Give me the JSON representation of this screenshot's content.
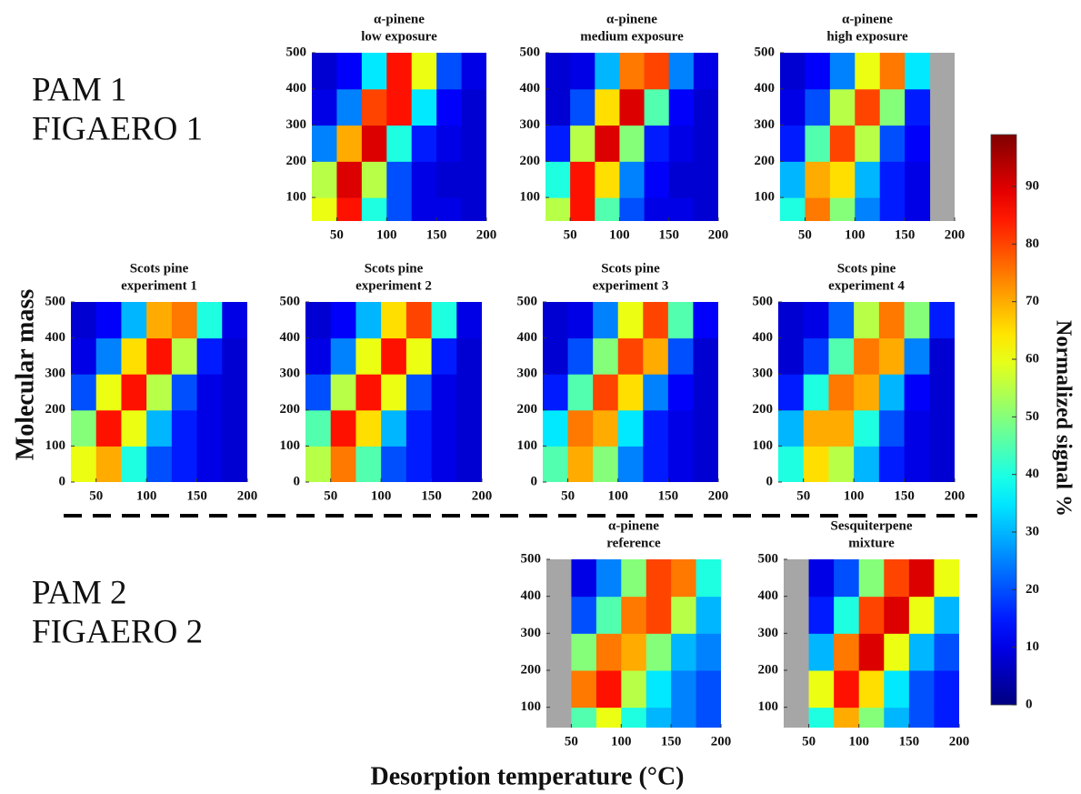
{
  "figure": {
    "group_labels": [
      [
        "PAM 1",
        "FIGAERO 1"
      ],
      [
        "PAM 2",
        "FIGAERO 2"
      ]
    ],
    "ylabel": "Molecular mass",
    "xlabel": "Desorption temperature (°C)",
    "colormap": "jet",
    "colorbar": {
      "label": "Normalized signal %",
      "clim": [
        0,
        99
      ],
      "ticks": [
        0,
        10,
        20,
        30,
        40,
        50,
        60,
        70,
        80,
        90
      ]
    }
  },
  "chart_data": [
    {
      "type": "heatmap",
      "title": [
        "α-pinene",
        "low exposure"
      ],
      "x_bins": [
        25,
        50,
        75,
        100,
        125,
        150,
        175,
        200
      ],
      "y_bins": [
        0,
        100,
        200,
        300,
        400,
        500
      ],
      "z": [
        [
          60,
          85,
          40,
          20,
          10,
          10,
          8
        ],
        [
          55,
          90,
          55,
          20,
          10,
          8,
          8
        ],
        [
          25,
          70,
          90,
          40,
          15,
          10,
          8
        ],
        [
          10,
          25,
          80,
          85,
          35,
          12,
          8
        ],
        [
          8,
          12,
          35,
          85,
          60,
          20,
          10
        ]
      ],
      "xlim": [
        25,
        200
      ],
      "ylim": [
        35,
        500
      ],
      "xticks": [
        50,
        100,
        150,
        200
      ],
      "yticks": [
        100,
        200,
        300,
        400,
        500
      ]
    },
    {
      "type": "heatmap",
      "title": [
        "α-pinene",
        "medium exposure"
      ],
      "x_bins": [
        25,
        50,
        75,
        100,
        125,
        150,
        175,
        200
      ],
      "y_bins": [
        0,
        100,
        200,
        300,
        400,
        500
      ],
      "z": [
        [
          55,
          85,
          45,
          20,
          10,
          10,
          8
        ],
        [
          40,
          85,
          65,
          25,
          12,
          8,
          8
        ],
        [
          15,
          55,
          90,
          50,
          15,
          10,
          8
        ],
        [
          8,
          20,
          65,
          90,
          45,
          12,
          8
        ],
        [
          8,
          10,
          30,
          75,
          80,
          25,
          10
        ]
      ],
      "xlim": [
        25,
        200
      ],
      "ylim": [
        35,
        500
      ],
      "xticks": [
        50,
        100,
        150,
        200
      ],
      "yticks": [
        100,
        200,
        300,
        400,
        500
      ]
    },
    {
      "type": "heatmap",
      "title": [
        "α-pinene",
        "high exposure"
      ],
      "x_bins": [
        25,
        50,
        75,
        100,
        125,
        150,
        175,
        200
      ],
      "y_bins": [
        0,
        100,
        200,
        300,
        400,
        500
      ],
      "z": [
        [
          40,
          75,
          50,
          25,
          15,
          10,
          null
        ],
        [
          30,
          70,
          65,
          30,
          15,
          10,
          null
        ],
        [
          15,
          45,
          80,
          55,
          20,
          12,
          null
        ],
        [
          10,
          20,
          55,
          80,
          50,
          15,
          null
        ],
        [
          8,
          12,
          25,
          60,
          75,
          35,
          null
        ]
      ],
      "xlim": [
        25,
        200
      ],
      "ylim": [
        35,
        500
      ],
      "xticks": [
        50,
        100,
        150,
        200
      ],
      "yticks": [
        100,
        200,
        300,
        400,
        500
      ]
    },
    {
      "type": "heatmap",
      "title": [
        "Scots pine",
        "experiment 1"
      ],
      "x_bins": [
        25,
        50,
        75,
        100,
        125,
        150,
        175,
        200
      ],
      "y_bins": [
        0,
        100,
        200,
        300,
        400,
        500
      ],
      "z": [
        [
          60,
          70,
          40,
          20,
          15,
          10,
          8
        ],
        [
          50,
          85,
          60,
          30,
          15,
          10,
          8
        ],
        [
          20,
          60,
          85,
          55,
          20,
          10,
          8
        ],
        [
          10,
          25,
          65,
          85,
          55,
          15,
          8
        ],
        [
          8,
          12,
          30,
          70,
          75,
          40,
          10
        ]
      ],
      "xlim": [
        25,
        200
      ],
      "ylim": [
        0,
        500
      ],
      "xticks": [
        50,
        100,
        150,
        200
      ],
      "yticks": [
        0,
        100,
        200,
        300,
        400,
        500
      ]
    },
    {
      "type": "heatmap",
      "title": [
        "Scots pine",
        "experiment 2"
      ],
      "x_bins": [
        25,
        50,
        75,
        100,
        125,
        150,
        175,
        200
      ],
      "y_bins": [
        0,
        100,
        200,
        300,
        400,
        500
      ],
      "z": [
        [
          55,
          75,
          45,
          20,
          15,
          10,
          8
        ],
        [
          45,
          85,
          65,
          30,
          15,
          10,
          8
        ],
        [
          20,
          55,
          85,
          60,
          20,
          10,
          8
        ],
        [
          10,
          25,
          60,
          85,
          60,
          15,
          8
        ],
        [
          8,
          12,
          30,
          65,
          80,
          40,
          10
        ]
      ],
      "xlim": [
        25,
        200
      ],
      "ylim": [
        0,
        500
      ],
      "xticks": [
        50,
        100,
        150,
        200
      ],
      "yticks": [
        0,
        100,
        200,
        300,
        400,
        500
      ]
    },
    {
      "type": "heatmap",
      "title": [
        "Scots pine",
        "experiment 3"
      ],
      "x_bins": [
        25,
        50,
        75,
        100,
        125,
        150,
        175,
        200
      ],
      "y_bins": [
        0,
        100,
        200,
        300,
        400,
        500
      ],
      "z": [
        [
          45,
          70,
          50,
          25,
          15,
          10,
          8
        ],
        [
          35,
          75,
          70,
          35,
          15,
          10,
          8
        ],
        [
          15,
          45,
          80,
          65,
          25,
          12,
          8
        ],
        [
          8,
          20,
          50,
          80,
          70,
          20,
          8
        ],
        [
          8,
          10,
          25,
          60,
          80,
          45,
          12
        ]
      ],
      "xlim": [
        25,
        200
      ],
      "ylim": [
        0,
        500
      ],
      "xticks": [
        50,
        100,
        150,
        200
      ],
      "yticks": [
        0,
        100,
        200,
        300,
        400,
        500
      ]
    },
    {
      "type": "heatmap",
      "title": [
        "Scots pine",
        "experiment 4"
      ],
      "x_bins": [
        25,
        50,
        75,
        100,
        125,
        150,
        175,
        200
      ],
      "y_bins": [
        0,
        100,
        200,
        300,
        400,
        500
      ],
      "z": [
        [
          40,
          65,
          55,
          30,
          15,
          10,
          8
        ],
        [
          30,
          70,
          70,
          40,
          20,
          10,
          8
        ],
        [
          15,
          40,
          75,
          70,
          30,
          12,
          8
        ],
        [
          8,
          18,
          45,
          75,
          70,
          25,
          8
        ],
        [
          8,
          10,
          22,
          55,
          75,
          50,
          15
        ]
      ],
      "xlim": [
        25,
        200
      ],
      "ylim": [
        0,
        500
      ],
      "xticks": [
        50,
        100,
        150,
        200
      ],
      "yticks": [
        0,
        100,
        200,
        300,
        400,
        500
      ]
    },
    {
      "type": "heatmap",
      "title": [
        "α-pinene",
        "reference"
      ],
      "x_bins": [
        25,
        50,
        75,
        100,
        125,
        150,
        175,
        200
      ],
      "y_bins": [
        0,
        100,
        200,
        300,
        400,
        500
      ],
      "z": [
        [
          null,
          45,
          60,
          40,
          30,
          25,
          20
        ],
        [
          null,
          75,
          85,
          55,
          35,
          25,
          20
        ],
        [
          null,
          50,
          75,
          70,
          50,
          30,
          25
        ],
        [
          null,
          20,
          45,
          75,
          80,
          55,
          30
        ],
        [
          null,
          10,
          25,
          50,
          80,
          75,
          40
        ]
      ],
      "xlim": [
        25,
        200
      ],
      "ylim": [
        45,
        500
      ],
      "xticks": [
        50,
        100,
        150,
        200
      ],
      "yticks": [
        100,
        200,
        300,
        400,
        500
      ]
    },
    {
      "type": "heatmap",
      "title": [
        "Sesquiterpene",
        "mixture"
      ],
      "x_bins": [
        25,
        50,
        75,
        100,
        125,
        150,
        175,
        200
      ],
      "y_bins": [
        0,
        100,
        200,
        300,
        400,
        500
      ],
      "z": [
        [
          null,
          40,
          70,
          50,
          30,
          20,
          15
        ],
        [
          null,
          60,
          85,
          65,
          35,
          20,
          15
        ],
        [
          null,
          30,
          75,
          90,
          60,
          30,
          20
        ],
        [
          null,
          15,
          40,
          80,
          90,
          60,
          30
        ],
        [
          null,
          10,
          20,
          50,
          80,
          90,
          60
        ]
      ],
      "xlim": [
        25,
        200
      ],
      "ylim": [
        45,
        500
      ],
      "xticks": [
        50,
        100,
        150,
        200
      ],
      "yticks": [
        100,
        200,
        300,
        400,
        500
      ]
    }
  ]
}
